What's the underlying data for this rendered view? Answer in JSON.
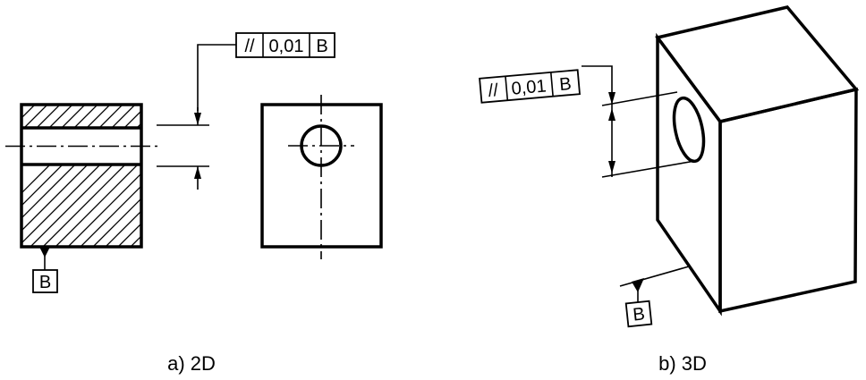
{
  "figure_a": {
    "caption": "a) 2D",
    "tolerance_frame": {
      "symbol": "//",
      "value": "0,01",
      "datum": "B"
    },
    "datum_label": "B"
  },
  "figure_b": {
    "caption": "b) 3D",
    "tolerance_frame": {
      "symbol": "//",
      "value": "0,01",
      "datum": "B"
    },
    "datum_label": "B"
  }
}
